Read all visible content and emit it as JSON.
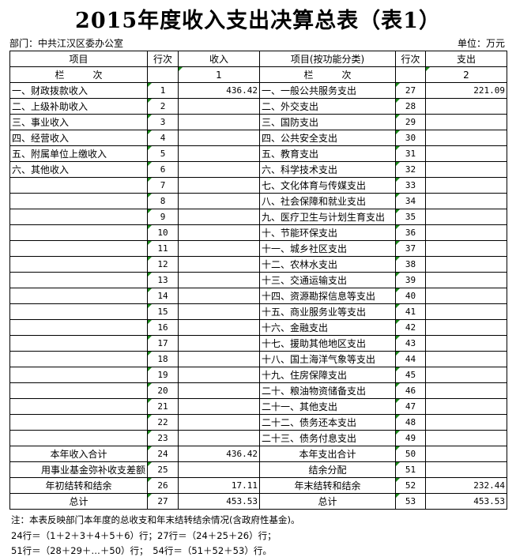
{
  "title": "2015年度收入支出决算总表（表1）",
  "department": "部门：中共江汉区委办公室",
  "unit": "单位：万元",
  "headers": [
    "项目",
    "行次",
    "收入",
    "项目(按功能分类)",
    "行次",
    "支出"
  ],
  "column_row": [
    "栏　　　次",
    "",
    "1",
    "栏　　　次",
    "",
    "2"
  ],
  "rows": [
    [
      "一、财政拨款收入",
      "1",
      "436.42",
      "一、一般公共服务支出",
      "27",
      "221.09"
    ],
    [
      "二、上级补助收入",
      "2",
      "",
      "二、外交支出",
      "28",
      ""
    ],
    [
      "三、事业收入",
      "3",
      "",
      "三、国防支出",
      "29",
      ""
    ],
    [
      "四、经营收入",
      "4",
      "",
      "四、公共安全支出",
      "30",
      ""
    ],
    [
      "五、附属单位上缴收入",
      "5",
      "",
      "五、教育支出",
      "31",
      ""
    ],
    [
      "六、其他收入",
      "6",
      "",
      "六、科学技术支出",
      "32",
      ""
    ],
    [
      "",
      "7",
      "",
      "七、文化体育与传媒支出",
      "33",
      ""
    ],
    [
      "",
      "8",
      "",
      "八、社会保障和就业支出",
      "34",
      ""
    ],
    [
      "",
      "9",
      "",
      "九、医疗卫生与计划生育支出",
      "35",
      ""
    ],
    [
      "",
      "10",
      "",
      "十、节能环保支出",
      "36",
      ""
    ],
    [
      "",
      "11",
      "",
      "十一、城乡社区支出",
      "37",
      ""
    ],
    [
      "",
      "12",
      "",
      "十二、农林水支出",
      "38",
      ""
    ],
    [
      "",
      "13",
      "",
      "十三、交通运输支出",
      "39",
      ""
    ],
    [
      "",
      "14",
      "",
      "十四、资源勘探信息等支出",
      "40",
      ""
    ],
    [
      "",
      "15",
      "",
      "十五、商业服务业等支出",
      "41",
      ""
    ],
    [
      "",
      "16",
      "",
      "十六、金融支出",
      "42",
      ""
    ],
    [
      "",
      "17",
      "",
      "十七、援助其他地区支出",
      "43",
      ""
    ],
    [
      "",
      "18",
      "",
      "十八、国土海洋气象等支出",
      "44",
      ""
    ],
    [
      "",
      "19",
      "",
      "十九、住房保障支出",
      "45",
      ""
    ],
    [
      "",
      "20",
      "",
      "二十、粮油物资储备支出",
      "46",
      ""
    ],
    [
      "",
      "21",
      "",
      "二十一、其他支出",
      "47",
      ""
    ],
    [
      "",
      "22",
      "",
      "二十二、债务还本支出",
      "48",
      ""
    ],
    [
      "",
      "23",
      "",
      "二十三、债务付息支出",
      "49",
      ""
    ]
  ],
  "summary_rows": [
    [
      "本年收入合计",
      "24",
      "436.42",
      "本年支出合计",
      "50",
      ""
    ],
    [
      "用事业基金弥补收支差额",
      "25",
      "",
      "结余分配",
      "51",
      ""
    ],
    [
      "年初结转和结余",
      "26",
      "17.11",
      "年末结转和结余",
      "52",
      "232.44"
    ],
    [
      "总计",
      "27",
      "453.53",
      "总计",
      "53",
      "453.53"
    ]
  ],
  "notes": [
    "注：本表反映部门本年度的总收支和年末结转结余情况(含政府性基金)。",
    "24行＝（1＋2＋3＋4＋5＋6）行；27行＝（24＋25＋26）行；",
    "51行＝（28＋29＋…＋50）行；　54行＝（51＋52＋53）行。"
  ]
}
